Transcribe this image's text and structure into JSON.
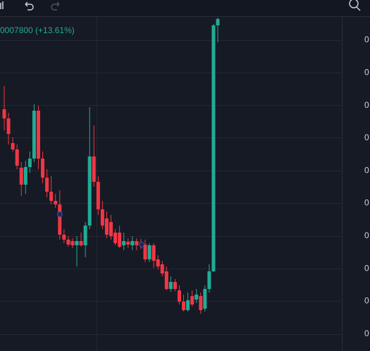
{
  "chart_data": {
    "type": "candlestick",
    "legend_text": "0007800 (+13.61%)",
    "price_scale_labels": [
      "0",
      "0",
      "0",
      "0",
      "0",
      "0",
      "0",
      "0",
      "0",
      "0"
    ],
    "up_color": "#22ab94",
    "down_color": "#f23645",
    "ylim": [
      0,
      498
    ],
    "series": {
      "open": [
        343,
        330,
        295,
        286,
        260,
        236,
        261,
        273,
        341,
        273,
        246,
        226,
        213,
        208,
        165,
        158,
        156,
        150,
        156,
        150,
        178,
        276,
        240,
        201,
        188,
        183,
        168,
        168,
        150,
        155,
        150,
        156,
        154,
        151,
        130,
        150,
        130,
        123,
        113,
        88,
        98,
        86,
        70,
        58,
        78,
        73,
        78,
        60,
        88,
        113,
        462
      ],
      "close": [
        330,
        308,
        286,
        263,
        236,
        261,
        273,
        341,
        273,
        246,
        226,
        213,
        208,
        165,
        158,
        151,
        150,
        156,
        150,
        178,
        276,
        240,
        201,
        178,
        165,
        163,
        153,
        148,
        156,
        151,
        156,
        150,
        149,
        130,
        150,
        128,
        120,
        110,
        88,
        98,
        88,
        70,
        58,
        72,
        66,
        80,
        58,
        88,
        113,
        462,
        471
      ],
      "high": [
        376,
        338,
        303,
        293,
        268,
        270,
        283,
        350,
        348,
        283,
        258,
        248,
        223,
        228,
        173,
        163,
        160,
        163,
        168,
        183,
        346,
        320,
        248,
        213,
        198,
        193,
        173,
        178,
        168,
        160,
        163,
        160,
        159,
        158,
        153,
        153,
        136,
        128,
        120,
        106,
        102,
        93,
        80,
        83,
        86,
        88,
        83,
        93,
        123,
        464,
        473
      ],
      "low": [
        313,
        293,
        283,
        258,
        220,
        223,
        253,
        268,
        258,
        238,
        218,
        208,
        203,
        158,
        153,
        148,
        146,
        120,
        148,
        133,
        173,
        233,
        193,
        173,
        160,
        158,
        150,
        146,
        143,
        146,
        143,
        143,
        145,
        126,
        126,
        118,
        116,
        106,
        86,
        84,
        85,
        66,
        56,
        56,
        63,
        68,
        53,
        56,
        83,
        112,
        438
      ]
    }
  }
}
